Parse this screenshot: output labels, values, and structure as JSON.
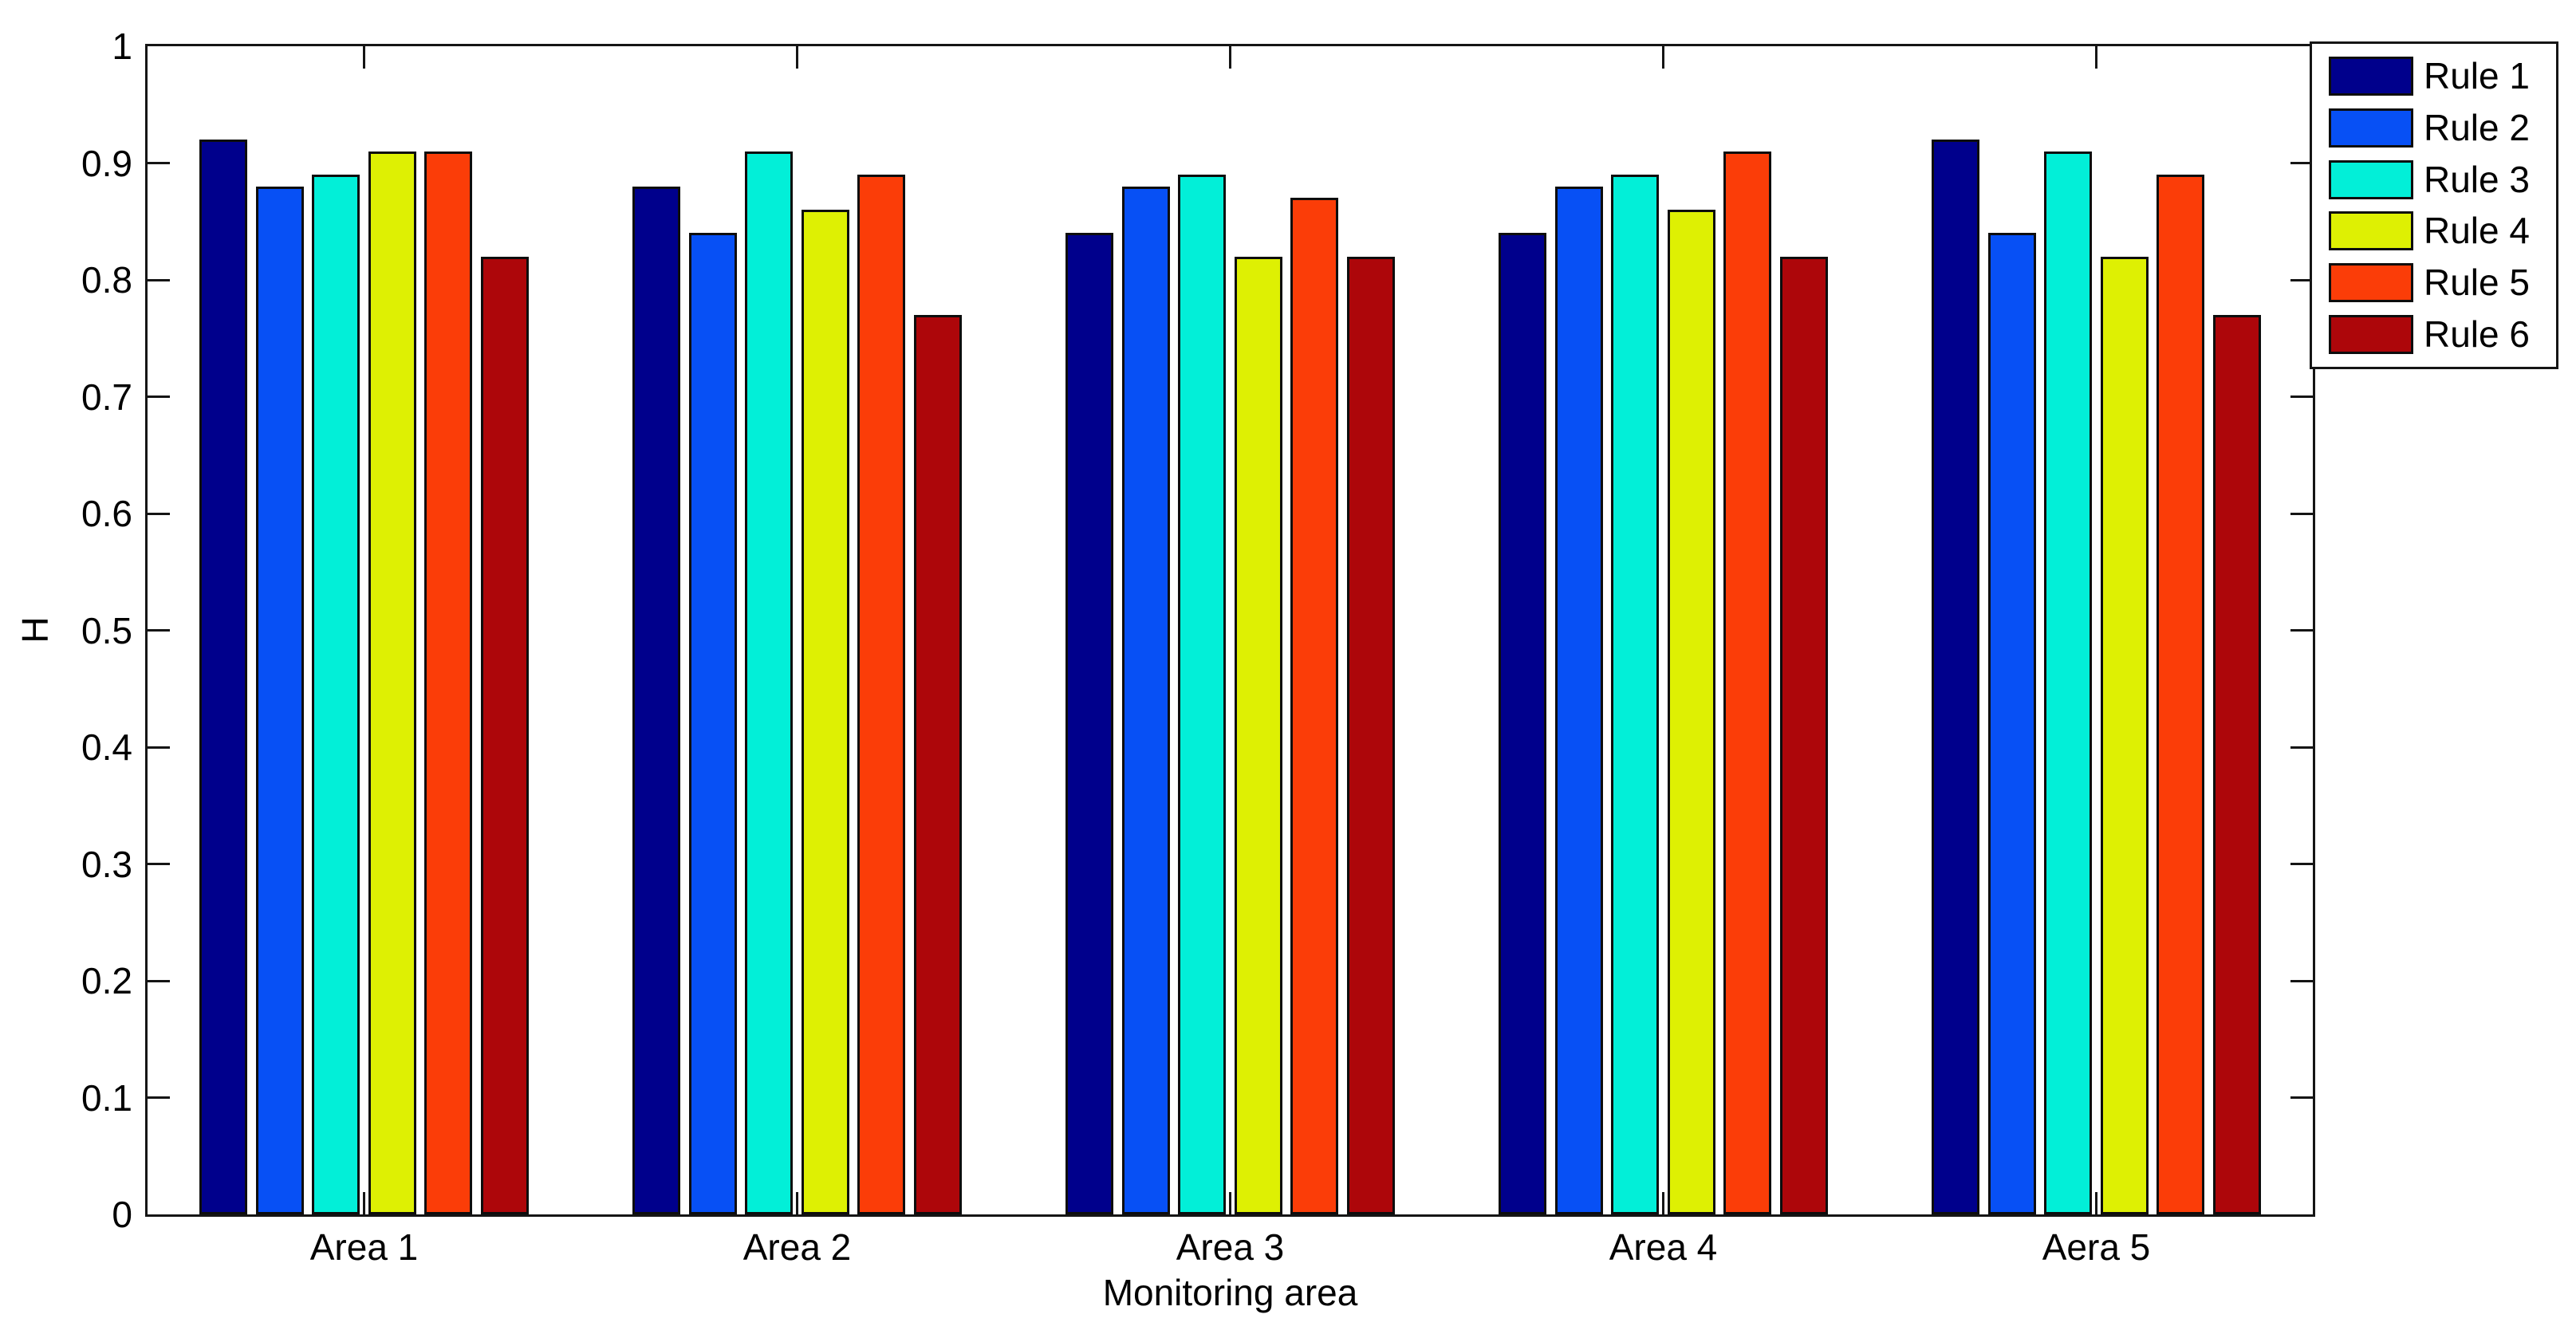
{
  "chart_data": {
    "type": "bar",
    "title": "",
    "xlabel": "Monitoring area",
    "ylabel": "H",
    "categories": [
      "Area 1",
      "Area 2",
      "Area 3",
      "Area 4",
      "Aera 5"
    ],
    "series": [
      {
        "name": "Rule 1",
        "color": "#00008C",
        "values": [
          0.92,
          0.88,
          0.84,
          0.84,
          0.92
        ]
      },
      {
        "name": "Rule 2",
        "color": "#0750F5",
        "values": [
          0.88,
          0.84,
          0.88,
          0.88,
          0.84
        ]
      },
      {
        "name": "Rule 3",
        "color": "#02EFD8",
        "values": [
          0.89,
          0.91,
          0.89,
          0.89,
          0.91
        ]
      },
      {
        "name": "Rule 4",
        "color": "#DEF003",
        "values": [
          0.91,
          0.86,
          0.82,
          0.86,
          0.82
        ]
      },
      {
        "name": "Rule 5",
        "color": "#FB3D08",
        "values": [
          0.91,
          0.89,
          0.87,
          0.91,
          0.89
        ]
      },
      {
        "name": "Rule 6",
        "color": "#AD060A",
        "values": [
          0.82,
          0.77,
          0.82,
          0.82,
          0.77
        ]
      }
    ],
    "ylim": [
      0,
      1
    ],
    "yticks": [
      0,
      0.1,
      0.2,
      0.3,
      0.4,
      0.5,
      0.6,
      0.7,
      0.8,
      0.9,
      1
    ],
    "ytick_labels": [
      "0",
      "0.1",
      "0.2",
      "0.3",
      "0.4",
      "0.5",
      "0.6",
      "0.7",
      "0.8",
      "0.9",
      "1"
    ],
    "legend_position": "top-right",
    "grid": false,
    "axis_color": "#151515",
    "background_color": "#ffffff"
  }
}
